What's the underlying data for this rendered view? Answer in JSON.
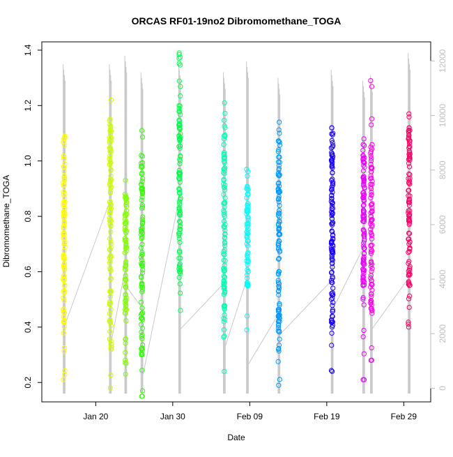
{
  "chart_data": {
    "type": "scatter",
    "title": "ORCAS RF01-19no2 Dibromomethane_TOGA",
    "xlabel": "Date",
    "ylabel": "Dibromomethane_TOGA",
    "x_ticks": [
      "Jan 20",
      "Jan 30",
      "Feb 09",
      "Feb 19",
      "Feb 29"
    ],
    "x_tick_days": [
      20,
      30,
      40,
      50,
      60
    ],
    "xlim_days": [
      13.0,
      63.5
    ],
    "y_ticks": [
      0.2,
      0.4,
      0.6,
      0.8,
      1.0,
      1.2,
      1.4
    ],
    "ylim": [
      0.13,
      1.43
    ],
    "y2_ticks": [
      0,
      2000,
      4000,
      6000,
      8000,
      10000,
      12000
    ],
    "y2lim": [
      -500,
      12700
    ],
    "y2_color": "#bebebe",
    "grid": false,
    "x_units_note": "day index: Jan d = d, Feb d = 31 + d",
    "series": [
      {
        "day": 15.9,
        "color": "#ffff00",
        "ymin": 0.21,
        "ymax": 1.09,
        "dense_min": 0.42,
        "dense_max": 0.98,
        "n": 95
      },
      {
        "day": 21.9,
        "color": "#ccff00",
        "ymin": 0.18,
        "ymax": 1.22,
        "dense_min": 0.32,
        "dense_max": 1.15,
        "n": 110
      },
      {
        "day": 23.9,
        "color": "#80ff00",
        "ymin": 0.23,
        "ymax": 0.93,
        "dense_min": 0.45,
        "dense_max": 0.88,
        "n": 80
      },
      {
        "day": 26.0,
        "color": "#33ff00",
        "ymin": 0.15,
        "ymax": 1.11,
        "dense_min": 0.3,
        "dense_max": 1.02,
        "n": 95
      },
      {
        "day": 30.9,
        "color": "#00ff4d",
        "ymin": 0.46,
        "ymax": 1.39,
        "dense_min": 0.6,
        "dense_max": 1.2,
        "n": 100
      },
      {
        "day": 36.7,
        "color": "#00ffb3",
        "ymin": 0.24,
        "ymax": 1.21,
        "dense_min": 0.42,
        "dense_max": 1.12,
        "n": 100
      },
      {
        "day": 39.7,
        "color": "#00ffff",
        "ymin": 0.39,
        "ymax": 0.97,
        "dense_min": 0.55,
        "dense_max": 0.9,
        "n": 70
      },
      {
        "day": 43.8,
        "color": "#0099ff",
        "ymin": 0.19,
        "ymax": 1.14,
        "dense_min": 0.32,
        "dense_max": 1.1,
        "n": 110
      },
      {
        "day": 50.7,
        "color": "#1a00ff",
        "ymin": 0.24,
        "ymax": 1.12,
        "dense_min": 0.4,
        "dense_max": 1.1,
        "n": 120
      },
      {
        "day": 54.8,
        "color": "#e600ff",
        "ymin": 0.21,
        "ymax": 1.08,
        "dense_min": 0.55,
        "dense_max": 1.02,
        "n": 110
      },
      {
        "day": 55.8,
        "color": "#ff00e6",
        "ymin": 0.28,
        "ymax": 1.29,
        "dense_min": 0.45,
        "dense_max": 1.05,
        "n": 95
      },
      {
        "day": 60.7,
        "color": "#ff0066",
        "ymin": 0.4,
        "ymax": 1.17,
        "dense_min": 0.55,
        "dense_max": 1.12,
        "n": 100
      }
    ],
    "gray_bars": [
      {
        "day": 15.9,
        "ymin": 0.16,
        "ymax": 1.35
      },
      {
        "day": 21.9,
        "ymin": 0.16,
        "ymax": 1.35
      },
      {
        "day": 23.9,
        "ymin": 0.16,
        "ymax": 1.38
      },
      {
        "day": 26.0,
        "ymin": 0.16,
        "ymax": 1.32
      },
      {
        "day": 30.9,
        "ymin": 0.16,
        "ymax": 1.35
      },
      {
        "day": 36.7,
        "ymin": 0.16,
        "ymax": 1.32
      },
      {
        "day": 39.7,
        "ymin": 0.16,
        "ymax": 1.36
      },
      {
        "day": 43.8,
        "ymin": 0.16,
        "ymax": 1.3
      },
      {
        "day": 50.7,
        "ymin": 0.16,
        "ymax": 1.33
      },
      {
        "day": 54.8,
        "ymin": 0.16,
        "ymax": 1.29
      },
      {
        "day": 55.8,
        "ymin": 0.16,
        "ymax": 1.31
      },
      {
        "day": 60.7,
        "ymin": 0.16,
        "ymax": 1.39
      }
    ],
    "gray_connectors": [
      {
        "x": [
          15.9,
          21.9
        ],
        "y": [
          0.4,
          0.86
        ]
      },
      {
        "x": [
          21.9,
          23.9
        ],
        "y": [
          0.33,
          0.62
        ]
      },
      {
        "x": [
          23.9,
          26.0
        ],
        "y": [
          0.55,
          0.47
        ]
      },
      {
        "x": [
          26.0,
          30.9
        ],
        "y": [
          0.21,
          0.87
        ]
      },
      {
        "x": [
          30.9,
          36.7
        ],
        "y": [
          0.39,
          0.56
        ]
      },
      {
        "x": [
          36.7,
          39.7
        ],
        "y": [
          0.32,
          0.58
        ]
      },
      {
        "x": [
          39.7,
          43.8
        ],
        "y": [
          0.26,
          0.45
        ]
      },
      {
        "x": [
          43.8,
          50.7
        ],
        "y": [
          0.37,
          0.57
        ]
      },
      {
        "x": [
          50.7,
          54.8
        ],
        "y": [
          0.46,
          0.69
        ]
      },
      {
        "x": [
          55.8,
          60.7
        ],
        "y": [
          0.39,
          0.58
        ]
      }
    ]
  }
}
